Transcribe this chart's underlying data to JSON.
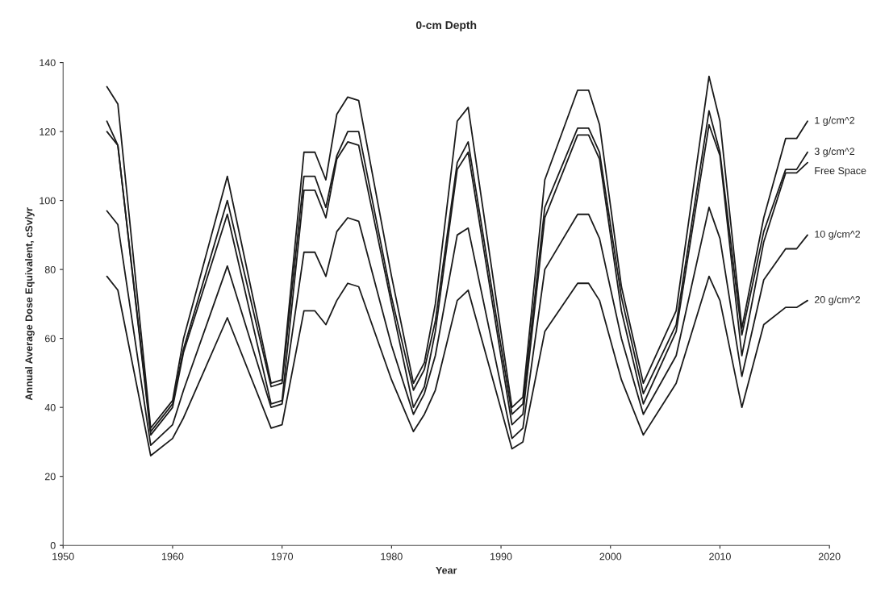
{
  "chart_data": {
    "type": "line",
    "title": "0-cm Depth",
    "xlabel": "Year",
    "ylabel": "Annual Average Dose Equivalent, cSv/yr",
    "x": [
      1954,
      1955,
      1958,
      1960,
      1961,
      1965,
      1969,
      1970,
      1972,
      1973,
      1974,
      1975,
      1976,
      1977,
      1980,
      1982,
      1983,
      1984,
      1986,
      1987,
      1991,
      1992,
      1994,
      1997,
      1998,
      1999,
      2001,
      2003,
      2006,
      2009,
      2010,
      2012,
      2014,
      2016,
      2017,
      2018
    ],
    "series": [
      {
        "name": "1 g/cm^2",
        "color": "#1a1a1a",
        "values": [
          133,
          128,
          34,
          42,
          60,
          107,
          47,
          48,
          114,
          114,
          106,
          125,
          130,
          129,
          78,
          47,
          53,
          70,
          123,
          127,
          40,
          43,
          106,
          132,
          132,
          122,
          75,
          47,
          68,
          136,
          123,
          63,
          95,
          118,
          118,
          123
        ]
      },
      {
        "name": "3 g/cm^2",
        "color": "#1a1a1a",
        "values": [
          123,
          116,
          33,
          41,
          57,
          100,
          46,
          47,
          107,
          107,
          98,
          113,
          120,
          120,
          72,
          45,
          51,
          65,
          111,
          117,
          38,
          41,
          98,
          121,
          121,
          114,
          72,
          44,
          64,
          126,
          114,
          61,
          91,
          109,
          109,
          114
        ]
      },
      {
        "name": "Free Space",
        "color": "#1a1a1a",
        "values": [
          120,
          116,
          32,
          40,
          56,
          96,
          41,
          42,
          103,
          103,
          95,
          112,
          117,
          116,
          70,
          40,
          46,
          62,
          109,
          114,
          35,
          38,
          95,
          119,
          119,
          112,
          68,
          41,
          62,
          122,
          113,
          55,
          88,
          108,
          108,
          111
        ]
      },
      {
        "name": "10 g/cm^2",
        "color": "#1a1a1a",
        "values": [
          97,
          93,
          29,
          35,
          45,
          81,
          40,
          41,
          85,
          85,
          78,
          91,
          95,
          94,
          58,
          38,
          44,
          55,
          90,
          92,
          31,
          34,
          80,
          96,
          96,
          89,
          60,
          38,
          55,
          98,
          89,
          49,
          77,
          86,
          86,
          90
        ]
      },
      {
        "name": "20 g/cm^2",
        "color": "#1a1a1a",
        "values": [
          78,
          74,
          26,
          31,
          37,
          66,
          34,
          35,
          68,
          68,
          64,
          71,
          76,
          75,
          48,
          33,
          38,
          45,
          71,
          74,
          28,
          30,
          62,
          76,
          76,
          71,
          48,
          32,
          47,
          78,
          71,
          40,
          64,
          69,
          69,
          71
        ]
      }
    ],
    "xlim": [
      1950,
      2020
    ],
    "xticks": [
      1950,
      1960,
      1970,
      1980,
      1990,
      2000,
      2010,
      2020
    ],
    "ylim": [
      0,
      140
    ],
    "yticks": [
      0,
      20,
      40,
      60,
      80,
      100,
      120,
      140
    ],
    "grid": false,
    "marker": "none",
    "line_style": "solid"
  }
}
